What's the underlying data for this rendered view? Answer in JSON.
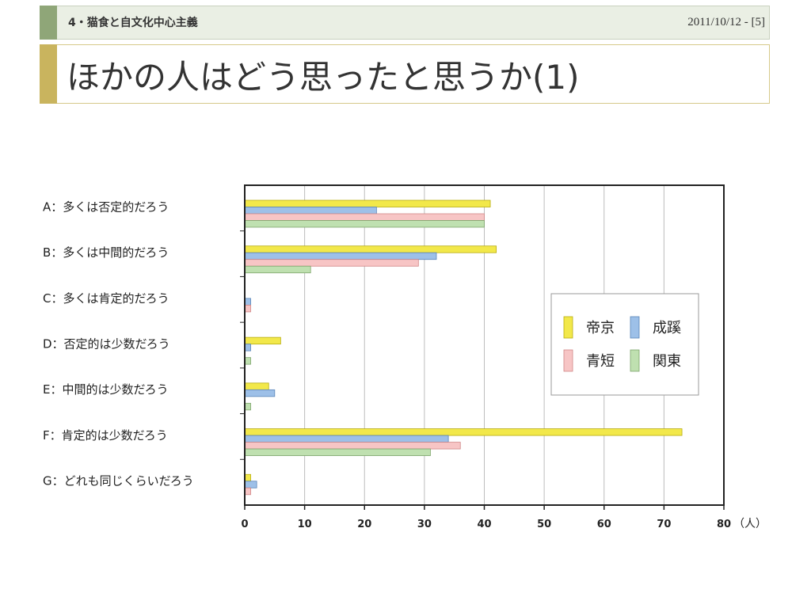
{
  "header": {
    "section": "4・猫食と自文化中心主義",
    "date_page": "2011/10/12 - [5]"
  },
  "title": "ほかの人はどう思ったと思うか(1)",
  "chart_data": {
    "type": "bar",
    "orientation": "horizontal",
    "categories": [
      "A：多くは否定的だろう",
      "B：多くは中間的だろう",
      "C：多くは肯定的だろう",
      "D：否定的は少数だろう",
      "E：中間的は少数だろう",
      "F：肯定的は少数だろう",
      "G：どれも同じくらいだろう"
    ],
    "series": [
      {
        "name": "帝京",
        "color": "#f2e84a",
        "values": [
          41,
          42,
          0,
          6,
          4,
          73,
          1
        ]
      },
      {
        "name": "成蹊",
        "color": "#9dc0e8",
        "values": [
          22,
          32,
          1,
          1,
          5,
          34,
          2
        ]
      },
      {
        "name": "青短",
        "color": "#f7c5c5",
        "values": [
          40,
          29,
          1,
          0,
          0,
          36,
          1
        ]
      },
      {
        "name": "関東",
        "color": "#bfe0b0",
        "values": [
          40,
          11,
          0,
          1,
          1,
          31,
          0
        ]
      }
    ],
    "xlim": [
      0,
      80
    ],
    "xticks": [
      "0",
      "10",
      "20",
      "30",
      "40",
      "50",
      "60",
      "70",
      "80"
    ],
    "xunit": "（人）",
    "grid": true,
    "legend_position": "right-middle"
  }
}
